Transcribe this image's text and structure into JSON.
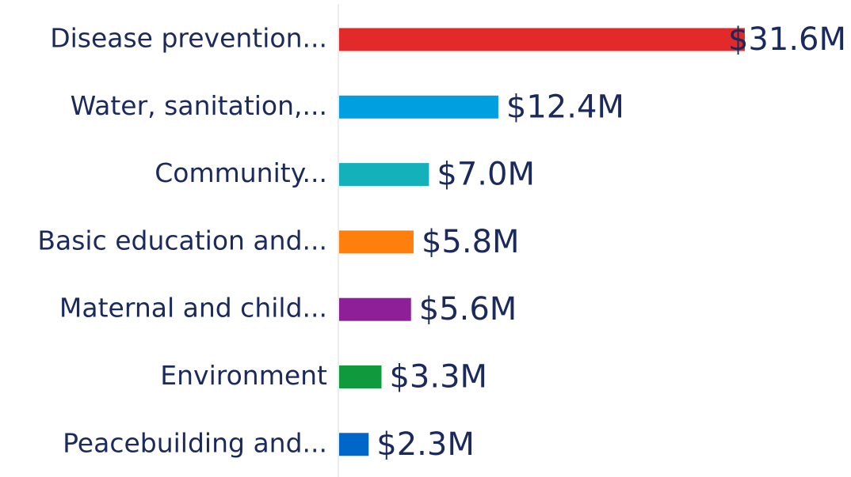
{
  "chart_data": {
    "type": "hbar",
    "categories": [
      "Disease prevention...",
      "Water, sanitation,...",
      "Community...",
      "Basic education and...",
      "Maternal and child...",
      "Environment",
      "Peacebuilding and..."
    ],
    "values": [
      31.6,
      12.4,
      7.0,
      5.8,
      5.6,
      3.3,
      2.3
    ],
    "value_labels": [
      "$31.6M",
      "$12.4M",
      "$7.0M",
      "$5.8M",
      "$5.6M",
      "$3.3M",
      "$2.3M"
    ],
    "colors": [
      "#e22a2a",
      "#00a0e0",
      "#14b1bb",
      "#ff7f0e",
      "#8e1f98",
      "#0e9a3d",
      "#0067c8"
    ]
  }
}
